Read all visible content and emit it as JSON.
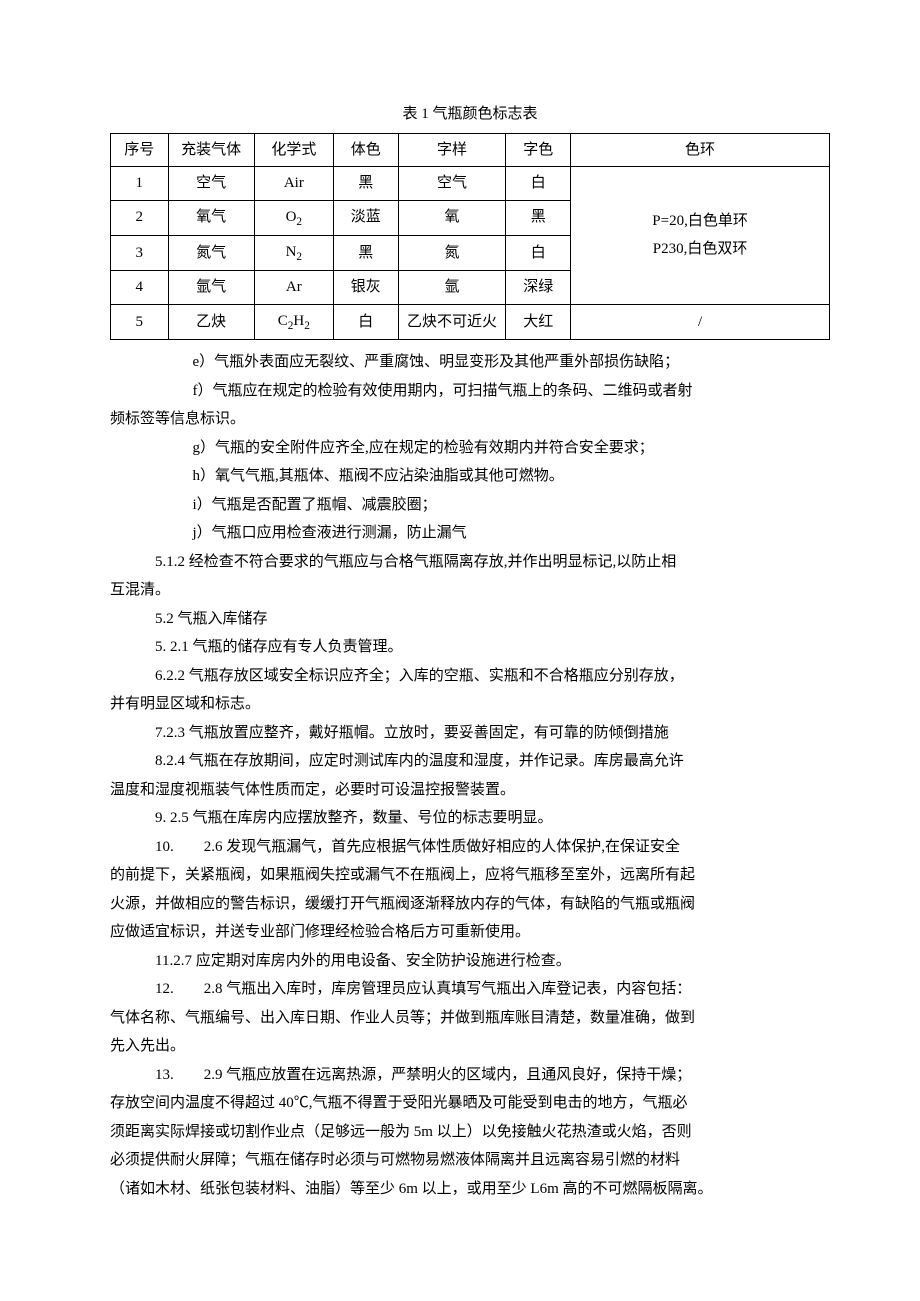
{
  "table": {
    "title": "表 1 气瓶颜色标志表",
    "headers": [
      "序号",
      "充装气体",
      "化学式",
      "体色",
      "字样",
      "字色",
      "色环"
    ],
    "rows": [
      {
        "n": "1",
        "gas": "空气",
        "formula": "Air",
        "body": "黑",
        "mark": "空气",
        "markColor": "白"
      },
      {
        "n": "2",
        "gas": "氧气",
        "formula": "O",
        "sub": "2",
        "body": "淡蓝",
        "mark": "氧",
        "markColor": "黑"
      },
      {
        "n": "3",
        "gas": "氮气",
        "formula": "N",
        "sub": "2",
        "body": "黑",
        "mark": "氮",
        "markColor": "白"
      },
      {
        "n": "4",
        "gas": "氩气",
        "formula": "Ar",
        "body": "银灰",
        "mark": "氩",
        "markColor": "深绿"
      },
      {
        "n": "5",
        "gas": "乙炔",
        "formula": "C",
        "sub": "2",
        "formula2": "H",
        "sub2": "2",
        "body": "白",
        "mark": "乙炔不可近火",
        "markColor": "大红"
      }
    ],
    "ringMerged": "P=20,白色单环\nP230,白色双环",
    "ringLast": "/"
  },
  "paras": {
    "e": "e）气瓶外表面应无裂纹、严重腐蚀、明显变形及其他严重外部损伤缺陷；",
    "f1": "f）气瓶应在规定的检验有效使用期内，可扫描气瓶上的条码、二维码或者射",
    "f2": "频标签等信息标识。",
    "g": "g）气瓶的安全附件应齐全,应在规定的检验有效期内并符合安全要求；",
    "h": "h）氧气气瓶,其瓶体、瓶阀不应沾染油脂或其他可燃物。",
    "i": "i）气瓶是否配置了瓶帽、减震胶圈；",
    "j": "j）气瓶口应用检查液进行测漏，防止漏气",
    "p512a": "5.1.2 经检查不符合要求的气瓶应与合格气瓶隔离存放,并作出明显标记,以防止相",
    "p512b": "互混清。",
    "p52": "5.2 气瓶入库储存",
    "p521": "5. 2.1 气瓶的储存应有专人负责管理。",
    "p622a": "6.2.2 气瓶存放区域安全标识应齐全；入库的空瓶、实瓶和不合格瓶应分别存放，",
    "p622b": "并有明显区域和标志。",
    "p723": "7.2.3 气瓶放置应整齐，戴好瓶帽。立放时，要妥善固定，有可靠的防倾倒措施",
    "p824a": "8.2.4 气瓶在存放期间，应定时测试库内的温度和湿度，并作记录。库房最高允许",
    "p824b": "温度和湿度视瓶装气体性质而定，必要时可设温控报警装置。",
    "p925": "9. 2.5 气瓶在库房内应摆放整齐，数量、号位的标志要明显。",
    "p10a": "10.　　2.6 发现气瓶漏气，首先应根据气体性质做好相应的人体保护,在保证安全",
    "p10b": "的前提下，关紧瓶阀，如果瓶阀失控或漏气不在瓶阀上，应将气瓶移至室外，远离所有起",
    "p10c": "火源，并做相应的警告标识，缓缓打开气瓶阀逐渐释放内存的气体，有缺陷的气瓶或瓶阀",
    "p10d": "应做适宜标识，并送专业部门修理经检验合格后方可重新使用。",
    "p11": "11.2.7 应定期对库房内外的用电设备、安全防护设施进行检查。",
    "p12a": "12.　　2.8 气瓶出入库时，库房管理员应认真填写气瓶出入库登记表，内容包括：",
    "p12b": "气体名称、气瓶编号、出入库日期、作业人员等；并做到瓶库账目清楚，数量准确，做到",
    "p12c": "先入先出。",
    "p13a": "13.　　2.9 气瓶应放置在远离热源，严禁明火的区域内，且通风良好，保持干燥；",
    "p13b": "存放空间内温度不得超过 40℃,气瓶不得置于受阳光暴晒及可能受到电击的地方，气瓶必",
    "p13c": "须距离实际焊接或切割作业点（足够远一般为 5m 以上）以免接触火花热渣或火焰，否则",
    "p13d": "必须提供耐火屏障；气瓶在储存时必须与可燃物易燃液体隔离并且远离容易引燃的材料",
    "p13e": "（诸如木材、纸张包装材料、油脂）等至少 6m 以上，或用至少 L6m 高的不可燃隔板隔离。"
  }
}
